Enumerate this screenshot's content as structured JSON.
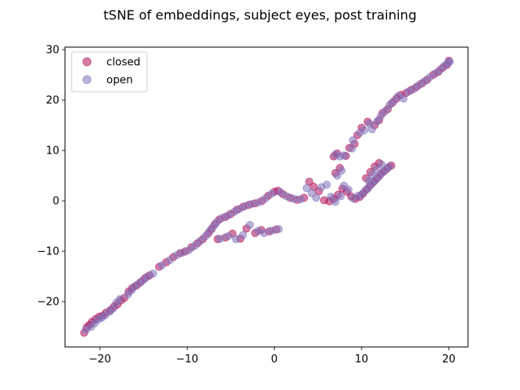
{
  "chart_data": {
    "type": "scatter",
    "title": "tSNE of embeddings, subject eyes, post training",
    "xlabel": "",
    "ylabel": "",
    "xlim": [
      -24,
      22.2
    ],
    "ylim": [
      -29,
      30.5
    ],
    "xticks": [
      -20,
      -10,
      0,
      10,
      20
    ],
    "yticks": [
      -20,
      -10,
      0,
      10,
      20,
      30
    ],
    "xtick_labels": [
      "−20",
      "−10",
      "0",
      "10",
      "20"
    ],
    "ytick_labels": [
      "−20",
      "−10",
      "0",
      "10",
      "20",
      "30"
    ],
    "grid": false,
    "legend_position": "top-left",
    "series": [
      {
        "name": "closed",
        "color": "#b0105a",
        "points": [
          [
            -21.8,
            -26.2
          ],
          [
            -21.5,
            -25.1
          ],
          [
            -21.2,
            -24.6
          ],
          [
            -20.9,
            -24.0
          ],
          [
            -20.5,
            -23.5
          ],
          [
            -20.1,
            -23.0
          ],
          [
            -19.7,
            -22.8
          ],
          [
            -19.3,
            -22.2
          ],
          [
            -18.8,
            -21.7
          ],
          [
            -18.4,
            -21.0
          ],
          [
            -18.0,
            -20.6
          ],
          [
            -17.6,
            -19.8
          ],
          [
            -17.2,
            -19.3
          ],
          [
            -16.7,
            -18.0
          ],
          [
            -16.3,
            -17.3
          ],
          [
            -15.8,
            -16.8
          ],
          [
            -15.3,
            -16.1
          ],
          [
            -14.8,
            -15.3
          ],
          [
            -14.3,
            -14.8
          ],
          [
            -13.2,
            -13.1
          ],
          [
            -12.4,
            -12.2
          ],
          [
            -11.6,
            -11.2
          ],
          [
            -10.8,
            -10.4
          ],
          [
            -10.2,
            -10.0
          ],
          [
            -9.5,
            -9.2
          ],
          [
            -8.8,
            -8.4
          ],
          [
            -8.2,
            -7.6
          ],
          [
            -7.6,
            -6.5
          ],
          [
            -7.2,
            -5.6
          ],
          [
            -6.8,
            -4.6
          ],
          [
            -6.3,
            -3.7
          ],
          [
            -5.6,
            -3.2
          ],
          [
            -5.0,
            -2.6
          ],
          [
            -4.3,
            -1.8
          ],
          [
            -3.6,
            -1.2
          ],
          [
            -2.9,
            -0.8
          ],
          [
            -2.2,
            -0.5
          ],
          [
            -1.4,
            0.0
          ],
          [
            -0.7,
            1.0
          ],
          [
            0.0,
            1.8
          ],
          [
            0.4,
            2.0
          ],
          [
            1.0,
            1.3
          ],
          [
            1.8,
            0.6
          ],
          [
            2.6,
            0.2
          ],
          [
            3.4,
            0.6
          ],
          [
            4.0,
            3.8
          ],
          [
            4.5,
            2.8
          ],
          [
            5.1,
            1.9
          ],
          [
            5.7,
            0.1
          ],
          [
            6.3,
            -0.1
          ],
          [
            6.8,
            0.4
          ],
          [
            7.3,
            1.2
          ],
          [
            7.8,
            2.4
          ],
          [
            8.3,
            1.8
          ],
          [
            8.8,
            0.9
          ],
          [
            9.3,
            0.4
          ],
          [
            9.8,
            0.8
          ],
          [
            10.2,
            1.5
          ],
          [
            10.6,
            2.3
          ],
          [
            11.0,
            3.1
          ],
          [
            11.4,
            3.8
          ],
          [
            11.8,
            4.5
          ],
          [
            12.2,
            5.3
          ],
          [
            12.6,
            5.9
          ],
          [
            13.0,
            6.5
          ],
          [
            13.4,
            7.0
          ],
          [
            12.0,
            7.5
          ],
          [
            11.5,
            6.8
          ],
          [
            11.0,
            5.7
          ],
          [
            10.5,
            4.5
          ],
          [
            7.0,
            5.5
          ],
          [
            7.5,
            6.5
          ],
          [
            6.8,
            8.8
          ],
          [
            7.2,
            9.4
          ],
          [
            8.2,
            8.9
          ],
          [
            8.6,
            10.5
          ],
          [
            9.2,
            11.3
          ],
          [
            9.5,
            13.0
          ],
          [
            10.0,
            14.5
          ],
          [
            10.7,
            15.7
          ],
          [
            11.5,
            15.0
          ],
          [
            12.0,
            16.0
          ],
          [
            12.4,
            17.4
          ],
          [
            13.0,
            18.2
          ],
          [
            13.5,
            19.4
          ],
          [
            14.0,
            20.3
          ],
          [
            14.5,
            21.0
          ],
          [
            15.1,
            21.4
          ],
          [
            15.7,
            22.0
          ],
          [
            16.3,
            22.6
          ],
          [
            16.9,
            23.3
          ],
          [
            17.5,
            24.0
          ],
          [
            18.2,
            25.0
          ],
          [
            18.8,
            25.6
          ],
          [
            19.3,
            26.4
          ],
          [
            19.8,
            27.0
          ],
          [
            20.0,
            27.8
          ],
          [
            -6.5,
            -7.6
          ],
          [
            -5.6,
            -7.3
          ],
          [
            -4.8,
            -6.5
          ],
          [
            -3.9,
            -7.5
          ],
          [
            -3.2,
            -5.5
          ],
          [
            -2.2,
            -6.4
          ],
          [
            -1.5,
            -5.8
          ],
          [
            -0.6,
            -6.1
          ],
          [
            0.2,
            -5.7
          ]
        ]
      },
      {
        "name": "open",
        "color": "#8073ba",
        "points": [
          [
            -21.6,
            -25.6
          ],
          [
            -21.0,
            -25.0
          ],
          [
            -20.6,
            -24.3
          ],
          [
            -20.2,
            -23.6
          ],
          [
            -19.8,
            -23.2
          ],
          [
            -19.4,
            -22.7
          ],
          [
            -18.9,
            -22.0
          ],
          [
            -18.5,
            -21.4
          ],
          [
            -18.1,
            -20.2
          ],
          [
            -17.7,
            -19.5
          ],
          [
            -16.8,
            -18.6
          ],
          [
            -16.4,
            -17.8
          ],
          [
            -16.0,
            -17.0
          ],
          [
            -15.5,
            -16.4
          ],
          [
            -15.0,
            -15.7
          ],
          [
            -14.5,
            -15.0
          ],
          [
            -13.9,
            -14.4
          ],
          [
            -12.9,
            -12.8
          ],
          [
            -12.0,
            -11.8
          ],
          [
            -11.2,
            -10.8
          ],
          [
            -10.5,
            -10.3
          ],
          [
            -9.8,
            -9.8
          ],
          [
            -9.1,
            -8.9
          ],
          [
            -8.5,
            -8.0
          ],
          [
            -7.9,
            -7.0
          ],
          [
            -7.4,
            -6.0
          ],
          [
            -7.0,
            -5.1
          ],
          [
            -6.6,
            -4.2
          ],
          [
            -6.0,
            -3.4
          ],
          [
            -5.3,
            -2.9
          ],
          [
            -4.6,
            -2.2
          ],
          [
            -4.0,
            -1.6
          ],
          [
            -3.3,
            -1.0
          ],
          [
            -2.6,
            -0.6
          ],
          [
            -1.8,
            -0.3
          ],
          [
            -1.0,
            0.5
          ],
          [
            -0.3,
            1.4
          ],
          [
            0.7,
            1.7
          ],
          [
            1.4,
            0.9
          ],
          [
            2.2,
            0.4
          ],
          [
            3.0,
            0.3
          ],
          [
            3.7,
            2.5
          ],
          [
            4.3,
            1.5
          ],
          [
            4.8,
            0.6
          ],
          [
            5.4,
            2.7
          ],
          [
            6.0,
            3.2
          ],
          [
            6.5,
            0.8
          ],
          [
            7.0,
            -0.2
          ],
          [
            7.6,
            0.9
          ],
          [
            8.0,
            3.0
          ],
          [
            8.5,
            2.2
          ],
          [
            9.0,
            0.5
          ],
          [
            9.6,
            1.0
          ],
          [
            10.0,
            1.2
          ],
          [
            10.4,
            2.0
          ],
          [
            10.8,
            2.6
          ],
          [
            11.2,
            3.4
          ],
          [
            11.6,
            4.1
          ],
          [
            12.0,
            4.8
          ],
          [
            12.4,
            5.6
          ],
          [
            12.8,
            6.2
          ],
          [
            13.2,
            6.8
          ],
          [
            12.3,
            7.2
          ],
          [
            11.7,
            6.2
          ],
          [
            11.2,
            5.2
          ],
          [
            10.8,
            4.0
          ],
          [
            7.2,
            5.0
          ],
          [
            7.7,
            6.0
          ],
          [
            7.0,
            9.2
          ],
          [
            7.5,
            8.8
          ],
          [
            8.0,
            9.0
          ],
          [
            8.9,
            10.4
          ],
          [
            9.0,
            12.0
          ],
          [
            9.8,
            13.5
          ],
          [
            10.3,
            14.0
          ],
          [
            10.9,
            15.3
          ],
          [
            11.2,
            14.2
          ],
          [
            11.8,
            15.8
          ],
          [
            12.2,
            16.8
          ],
          [
            12.7,
            17.8
          ],
          [
            13.2,
            19.0
          ],
          [
            13.7,
            19.8
          ],
          [
            14.2,
            20.8
          ],
          [
            14.8,
            20.3
          ],
          [
            15.4,
            21.7
          ],
          [
            16.0,
            22.2
          ],
          [
            16.6,
            23.0
          ],
          [
            17.2,
            23.7
          ],
          [
            17.8,
            24.5
          ],
          [
            18.5,
            25.3
          ],
          [
            19.0,
            26.0
          ],
          [
            19.5,
            26.8
          ],
          [
            19.9,
            27.4
          ],
          [
            20.1,
            27.6
          ],
          [
            -6.2,
            -7.5
          ],
          [
            -5.3,
            -7.0
          ],
          [
            -4.4,
            -7.6
          ],
          [
            -3.6,
            -6.8
          ],
          [
            -2.8,
            -4.8
          ],
          [
            -1.9,
            -6.0
          ],
          [
            -1.2,
            -6.4
          ],
          [
            -0.3,
            -5.9
          ],
          [
            0.5,
            -5.6
          ]
        ]
      }
    ]
  }
}
